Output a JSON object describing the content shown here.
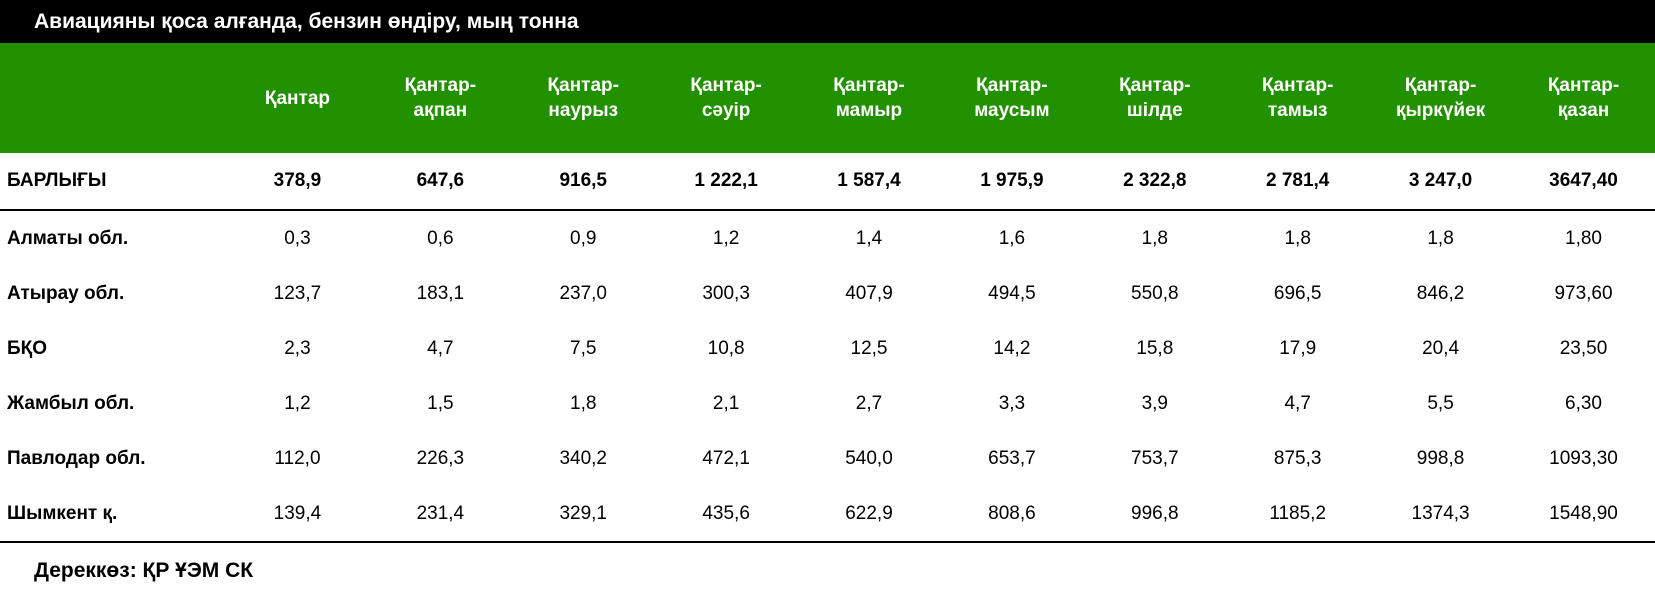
{
  "title": "Авиацияны қоса алғанда, бензин өндіру, мың тонна",
  "columns": [
    "",
    "Қантар",
    "Қантар-\nақпан",
    "Қантар-\nнаурыз",
    "Қантар-\nсәуір",
    "Қантар-\nмамыр",
    "Қантар-\nмаусым",
    "Қантар-\nшілде",
    "Қантар-\nтамыз",
    "Қантар-\nқыркүйек",
    "Қантар-\nқазан"
  ],
  "total": {
    "label": "БАРЛЫҒЫ",
    "values": [
      "378,9",
      "647,6",
      "916,5",
      "1 222,1",
      "1 587,4",
      "1 975,9",
      "2 322,8",
      "2 781,4",
      "3 247,0",
      "3647,40"
    ]
  },
  "rows": [
    {
      "label": "Алматы обл.",
      "values": [
        "0,3",
        "0,6",
        "0,9",
        "1,2",
        "1,4",
        "1,6",
        "1,8",
        "1,8",
        "1,8",
        "1,80"
      ]
    },
    {
      "label": "Атырау обл.",
      "values": [
        "123,7",
        "183,1",
        "237,0",
        "300,3",
        "407,9",
        "494,5",
        "550,8",
        "696,5",
        "846,2",
        "973,60"
      ]
    },
    {
      "label": "БҚО",
      "values": [
        "2,3",
        "4,7",
        "7,5",
        "10,8",
        "12,5",
        "14,2",
        "15,8",
        "17,9",
        "20,4",
        "23,50"
      ]
    },
    {
      "label": "Жамбыл обл.",
      "values": [
        "1,2",
        "1,5",
        "1,8",
        "2,1",
        "2,7",
        "3,3",
        "3,9",
        "4,7",
        "5,5",
        "6,30"
      ]
    },
    {
      "label": "Павлодар обл.",
      "values": [
        "112,0",
        "226,3",
        "340,2",
        "472,1",
        "540,0",
        "653,7",
        "753,7",
        "875,3",
        "998,8",
        "1093,30"
      ]
    },
    {
      "label": "Шымкент қ.",
      "values": [
        "139,4",
        "231,4",
        "329,1",
        "435,6",
        "622,9",
        "808,6",
        "996,8",
        "1185,2",
        "1374,3",
        "1548,90"
      ]
    }
  ],
  "source": "Дереккөз: ҚР ҰЭМ СК",
  "colors": {
    "title_bg": "#000000",
    "header_bg": "#229100"
  }
}
